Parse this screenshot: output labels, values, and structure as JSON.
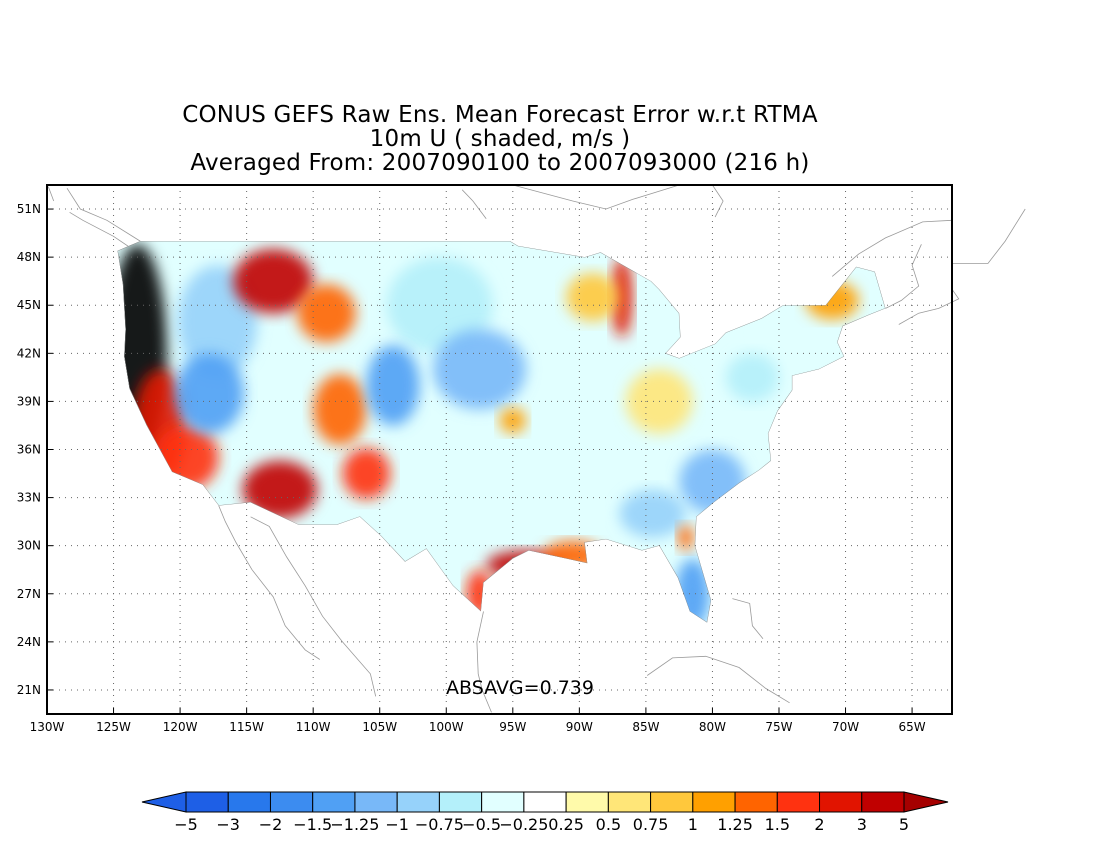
{
  "title": {
    "line1": "CONUS GEFS Raw Ens. Mean Forecast Error w.r.t RTMA",
    "line2": "10m U ( shaded, m/s )",
    "line3": "Averaged From: 2007090100 to 2007093000 (216 h)"
  },
  "stat_label": "ABSAVG=0.739",
  "map": {
    "lon_range": [
      -130,
      -62
    ],
    "lat_range": [
      19.5,
      52.5
    ],
    "lon_ticks": [
      {
        "v": -130,
        "label": "130W"
      },
      {
        "v": -125,
        "label": "125W"
      },
      {
        "v": -120,
        "label": "120W"
      },
      {
        "v": -115,
        "label": "115W"
      },
      {
        "v": -110,
        "label": "110W"
      },
      {
        "v": -105,
        "label": "105W"
      },
      {
        "v": -100,
        "label": "100W"
      },
      {
        "v": -95,
        "label": "95W"
      },
      {
        "v": -90,
        "label": "90W"
      },
      {
        "v": -85,
        "label": "85W"
      },
      {
        "v": -80,
        "label": "80W"
      },
      {
        "v": -75,
        "label": "75W"
      },
      {
        "v": -70,
        "label": "70W"
      },
      {
        "v": -65,
        "label": "65W"
      }
    ],
    "lat_ticks": [
      {
        "v": 21,
        "label": "21N"
      },
      {
        "v": 24,
        "label": "24N"
      },
      {
        "v": 27,
        "label": "27N"
      },
      {
        "v": 30,
        "label": "30N"
      },
      {
        "v": 33,
        "label": "33N"
      },
      {
        "v": 36,
        "label": "36N"
      },
      {
        "v": 39,
        "label": "39N"
      },
      {
        "v": 42,
        "label": "42N"
      },
      {
        "v": 45,
        "label": "45N"
      },
      {
        "v": 48,
        "label": "48N"
      },
      {
        "v": 51,
        "label": "51N"
      }
    ],
    "gridlines": true,
    "field_regions": [
      {
        "name": "pacific-coast",
        "level": 3
      },
      {
        "name": "great-basin",
        "level": -1.25
      },
      {
        "name": "northern-rockies",
        "level": 2
      },
      {
        "name": "southwest-desert",
        "level": 2
      },
      {
        "name": "northern-plains",
        "level": -1
      },
      {
        "name": "texas-gulf-coast",
        "level": 2
      },
      {
        "name": "great-lakes-east-shore",
        "level": 1.5
      },
      {
        "name": "southeast-atlantic",
        "level": -1.5
      },
      {
        "name": "florida",
        "level": -2
      },
      {
        "name": "northeast",
        "level": -0.75
      }
    ]
  },
  "colorbar": {
    "colors": [
      "#1e5fe6",
      "#2878ec",
      "#3c8cf0",
      "#50a0f4",
      "#78b8f8",
      "#96d2fa",
      "#b4f0fa",
      "#e1ffff",
      "#ffffff",
      "#fffaaa",
      "#ffe678",
      "#ffc83c",
      "#ffa000",
      "#ff6400",
      "#ff3210",
      "#e11400",
      "#c00000"
    ],
    "under_color": "#1e5fe6",
    "over_color": "#a50000",
    "labels": [
      "-5",
      "-3",
      "-2",
      "-1.5",
      "-1.25",
      "-1",
      "-0.75",
      "-0.5",
      "-0.25",
      "0.25",
      "0.5",
      "0.75",
      "1",
      "1.25",
      "1.5",
      "2",
      "3",
      "5"
    ]
  }
}
